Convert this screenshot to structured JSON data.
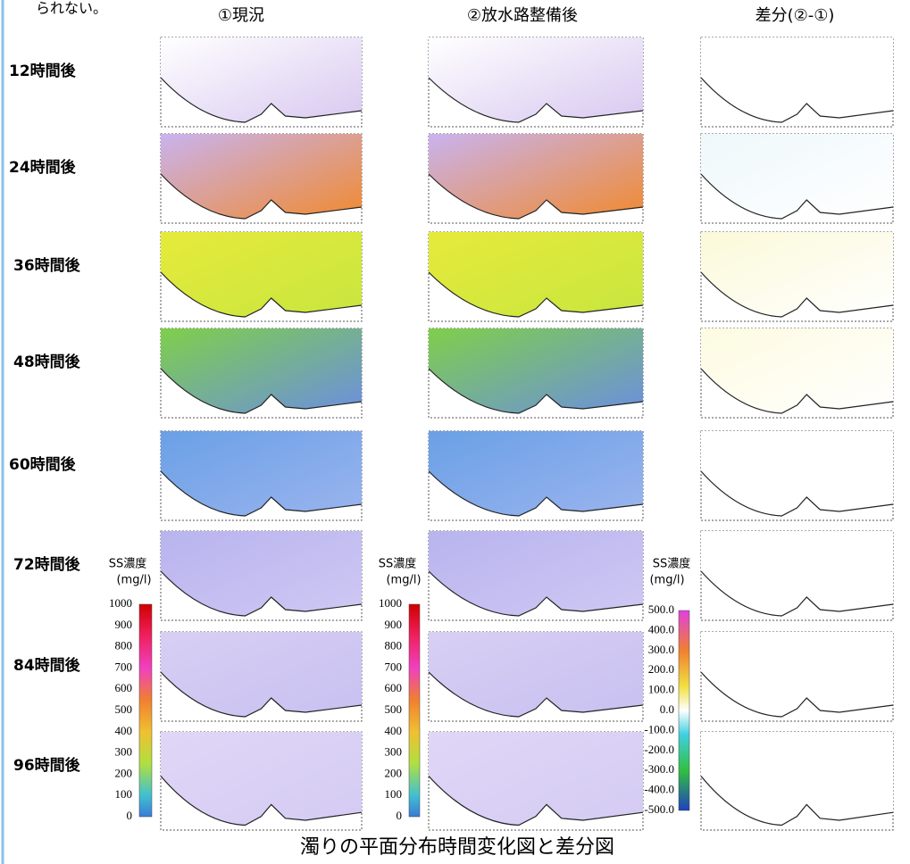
{
  "intro": "られない。",
  "columns": [
    "①現況",
    "②放水路整備後",
    "差分(②-①)"
  ],
  "rows": [
    "12時間後",
    "24時間後",
    "36時間後",
    "48時間後",
    "60時間後",
    "72時間後",
    "84時間後",
    "96時間後"
  ],
  "legends": [
    {
      "title": "SS濃度",
      "unit": "(mg/l)",
      "ticks": [
        "1000",
        "900",
        "800",
        "700",
        "600",
        "500",
        "400",
        "300",
        "200",
        "100",
        "0"
      ]
    },
    {
      "title": "SS濃度",
      "unit": "(mg/l)",
      "ticks": [
        "1000",
        "900",
        "800",
        "700",
        "600",
        "500",
        "400",
        "300",
        "200",
        "100",
        "0"
      ]
    },
    {
      "title": "SS濃度",
      "unit": "(mg/l)",
      "ticks": [
        "500.0",
        "400.0",
        "300.0",
        "200.0",
        "100.0",
        "0.0",
        "-100.0",
        "-200.0",
        "-300.0",
        "-400.0",
        "-500.0"
      ]
    }
  ],
  "caption": "濁りの平面分布時間変化図と差分図"
}
